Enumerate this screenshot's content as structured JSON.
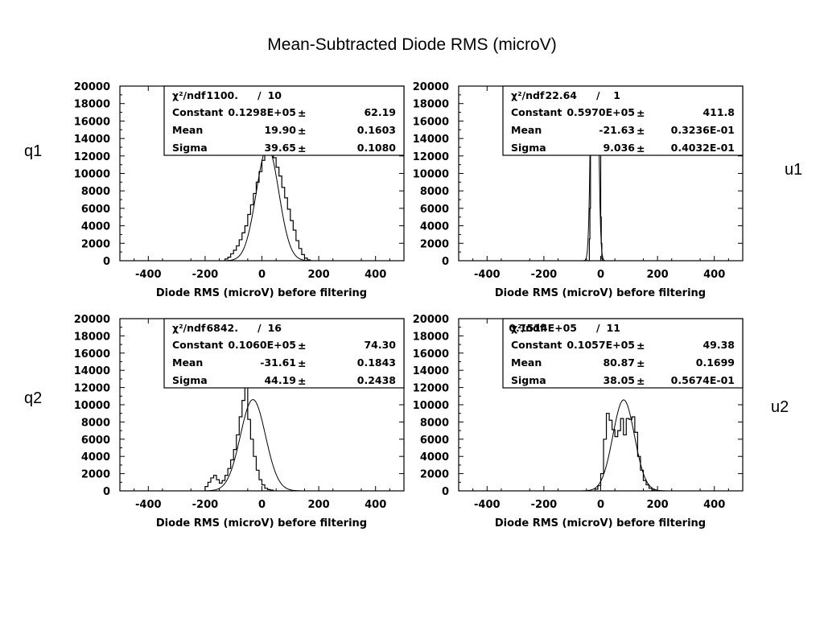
{
  "title": "Mean-Subtracted  Diode RMS (microV)",
  "row_labels": {
    "q1": "q1",
    "q2": "q2",
    "u1": "u1",
    "u2": "u2"
  },
  "chart_data": [
    {
      "id": "q1",
      "type": "bar",
      "xlabel": "Diode RMS (microV) before filtering",
      "xlim": [
        -500,
        500
      ],
      "ylim": [
        0,
        20000
      ],
      "xticks": [
        "-400",
        "-200",
        "0",
        "200",
        "400"
      ],
      "yticks": [
        "0",
        "2000",
        "4000",
        "6000",
        "8000",
        "10000",
        "12000",
        "14000",
        "16000",
        "18000",
        "20000"
      ],
      "stats": {
        "chi2_label": "χ²/ndf",
        "chi2": "1100.",
        "sep": "/",
        "ndf": "10",
        "rows": [
          {
            "name": "Constant",
            "value": "0.1298E+05",
            "pm": "±",
            "error": "62.19"
          },
          {
            "name": "Mean",
            "value": "19.90",
            "pm": "±",
            "error": "0.1603"
          },
          {
            "name": "Sigma",
            "value": "39.65",
            "pm": "±",
            "error": "0.1080"
          }
        ]
      },
      "fit": {
        "constant": 12980,
        "mean": 19.9,
        "sigma": 39.65
      },
      "hist": {
        "bin_width": 10,
        "x_start": -130,
        "values": [
          200,
          400,
          800,
          1200,
          1700,
          2400,
          3200,
          4000,
          5300,
          6400,
          7700,
          9000,
          10200,
          11500,
          12400,
          12700,
          12300,
          11800,
          10700,
          9700,
          8400,
          7200,
          5900,
          4600,
          3500,
          2300,
          1400,
          700,
          300,
          100
        ]
      }
    },
    {
      "id": "u1",
      "type": "bar",
      "xlabel": "Diode RMS (microV) before filtering",
      "xlim": [
        -500,
        500
      ],
      "ylim": [
        0,
        20000
      ],
      "xticks": [
        "-400",
        "-200",
        "0",
        "200",
        "400"
      ],
      "yticks": [
        "0",
        "2000",
        "4000",
        "6000",
        "8000",
        "10000",
        "12000",
        "14000",
        "16000",
        "18000",
        "20000"
      ],
      "stats": {
        "chi2_label": "χ²/ndf",
        "chi2": "22.64",
        "sep": "/",
        "ndf": "1",
        "rows": [
          {
            "name": "Constant",
            "value": "0.5970E+05",
            "pm": "±",
            "error": "411.8"
          },
          {
            "name": "Mean",
            "value": "-21.63",
            "pm": "±",
            "error": "0.3236E-01"
          },
          {
            "name": "Sigma",
            "value": "9.036",
            "pm": "±",
            "error": "0.4032E-01"
          }
        ]
      },
      "fit": {
        "constant": 59700,
        "mean": -21.63,
        "sigma": 9.036
      },
      "hist": {
        "bin_width": 2,
        "x_start": -50,
        "values": [
          0,
          0,
          0,
          0,
          0,
          2500,
          6000,
          18000,
          30000,
          30000,
          30000,
          30000,
          30000,
          30000,
          30000,
          30000,
          30000,
          30000,
          30000,
          30000,
          30000,
          30000,
          30000,
          30000,
          30000,
          5000,
          2000,
          200,
          0
        ]
      }
    },
    {
      "id": "q2",
      "type": "bar",
      "xlabel": "Diode RMS (microV) before filtering",
      "xlim": [
        -500,
        500
      ],
      "ylim": [
        0,
        20000
      ],
      "xticks": [
        "-400",
        "-200",
        "0",
        "200",
        "400"
      ],
      "yticks": [
        "0",
        "2000",
        "4000",
        "6000",
        "8000",
        "10000",
        "12000",
        "14000",
        "16000",
        "18000",
        "20000"
      ],
      "stats": {
        "chi2_label": "χ²/ndf",
        "chi2": "6842.",
        "sep": "/",
        "ndf": "16",
        "rows": [
          {
            "name": "Constant",
            "value": "0.1060E+05",
            "pm": "±",
            "error": "74.30"
          },
          {
            "name": "Mean",
            "value": "-31.61",
            "pm": "±",
            "error": "0.1843"
          },
          {
            "name": "Sigma",
            "value": "44.19",
            "pm": "±",
            "error": "0.2438"
          }
        ]
      },
      "fit": {
        "constant": 10600,
        "mean": -31.61,
        "sigma": 44.19
      },
      "hist": {
        "bin_width": 10,
        "x_start": -200,
        "values": [
          500,
          1000,
          1500,
          1800,
          1300,
          900,
          1200,
          1800,
          2600,
          3600,
          4800,
          6500,
          8600,
          10500,
          12300,
          8300,
          6000,
          4000,
          2400,
          1300,
          700,
          300,
          150,
          80
        ]
      }
    },
    {
      "id": "u2",
      "type": "bar",
      "xlabel": "Diode RMS (microV) before filtering",
      "xlim": [
        -500,
        500
      ],
      "ylim": [
        0,
        20000
      ],
      "xticks": [
        "-400",
        "-200",
        "0",
        "200",
        "400"
      ],
      "yticks": [
        "0",
        "2000",
        "4000",
        "6000",
        "8000",
        "10000",
        "12000",
        "14000",
        "16000",
        "18000",
        "20000"
      ],
      "stats": {
        "chi2_label": "χ²/ndf",
        "chi2": "0.1514E+05",
        "sep": "/",
        "ndf": "11",
        "rows": [
          {
            "name": "Constant",
            "value": "0.1057E+05",
            "pm": "±",
            "error": "49.38"
          },
          {
            "name": "Mean",
            "value": "80.87",
            "pm": "±",
            "error": "0.1699"
          },
          {
            "name": "Sigma",
            "value": "38.05",
            "pm": "±",
            "error": "0.5674E-01"
          }
        ]
      },
      "fit": {
        "constant": 10570,
        "mean": 80.87,
        "sigma": 38.05
      },
      "hist": {
        "bin_width": 10,
        "x_start": -20,
        "values": [
          200,
          600,
          2000,
          6000,
          9000,
          8200,
          7100,
          6300,
          7000,
          8400,
          6500,
          8400,
          8300,
          8600,
          6800,
          4000,
          2400,
          1200,
          700,
          300,
          100,
          0
        ]
      }
    }
  ]
}
